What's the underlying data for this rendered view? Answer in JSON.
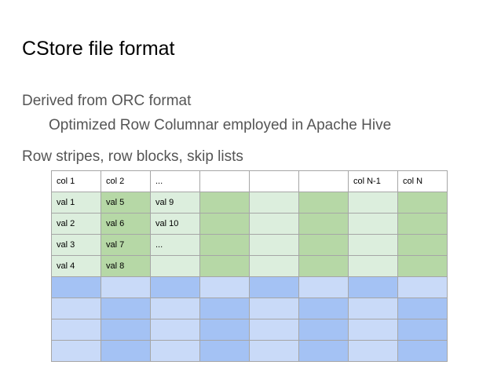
{
  "slide": {
    "title": "CStore file format",
    "bullets": [
      "Derived from ORC format",
      "Optimized Row Columnar employed in Apache Hive",
      "Row stripes, row blocks, skip lists"
    ]
  },
  "table": {
    "header": [
      "col 1",
      "col 2",
      "...",
      "",
      "",
      "",
      "col N-1",
      "col N"
    ],
    "rows": [
      [
        "val 1",
        "val 5",
        "val 9",
        "",
        "",
        "",
        "",
        ""
      ],
      [
        "val 2",
        "val 6",
        "val 10",
        "",
        "",
        "",
        "",
        ""
      ],
      [
        "val 3",
        "val 7",
        "...",
        "",
        "",
        "",
        "",
        ""
      ],
      [
        "val 4",
        "val 8",
        "",
        "",
        "",
        "",
        "",
        ""
      ],
      [
        "",
        "",
        "",
        "",
        "",
        "",
        "",
        ""
      ],
      [
        "",
        "",
        "",
        "",
        "",
        "",
        "",
        ""
      ],
      [
        "",
        "",
        "",
        "",
        "",
        "",
        "",
        ""
      ],
      [
        "",
        "",
        "",
        "",
        "",
        "",
        "",
        ""
      ]
    ],
    "row_shading": [
      [
        "gl",
        "gd",
        "gl",
        "gd",
        "gl",
        "gd",
        "gl",
        "gd"
      ],
      [
        "gl",
        "gd",
        "gl",
        "gd",
        "gl",
        "gd",
        "gl",
        "gd"
      ],
      [
        "gl",
        "gd",
        "gl",
        "gd",
        "gl",
        "gd",
        "gl",
        "gd"
      ],
      [
        "gl",
        "gd",
        "gl",
        "gd",
        "gl",
        "gd",
        "gl",
        "gd"
      ],
      [
        "bd",
        "bl",
        "bd",
        "bl",
        "bd",
        "bl",
        "bd",
        "bl"
      ],
      [
        "bl",
        "bd",
        "bl",
        "bd",
        "bl",
        "bd",
        "bl",
        "bd"
      ],
      [
        "bl",
        "bd",
        "bl",
        "bd",
        "bl",
        "bd",
        "bl",
        "bd"
      ],
      [
        "bl",
        "bd",
        "bl",
        "bd",
        "bl",
        "bd",
        "bl",
        "bd"
      ]
    ],
    "colors": {
      "green_light": "#dceedd",
      "green_dark": "#b6d8a6",
      "blue_light": "#c9daf8",
      "blue_dark": "#a4c2f4"
    }
  }
}
